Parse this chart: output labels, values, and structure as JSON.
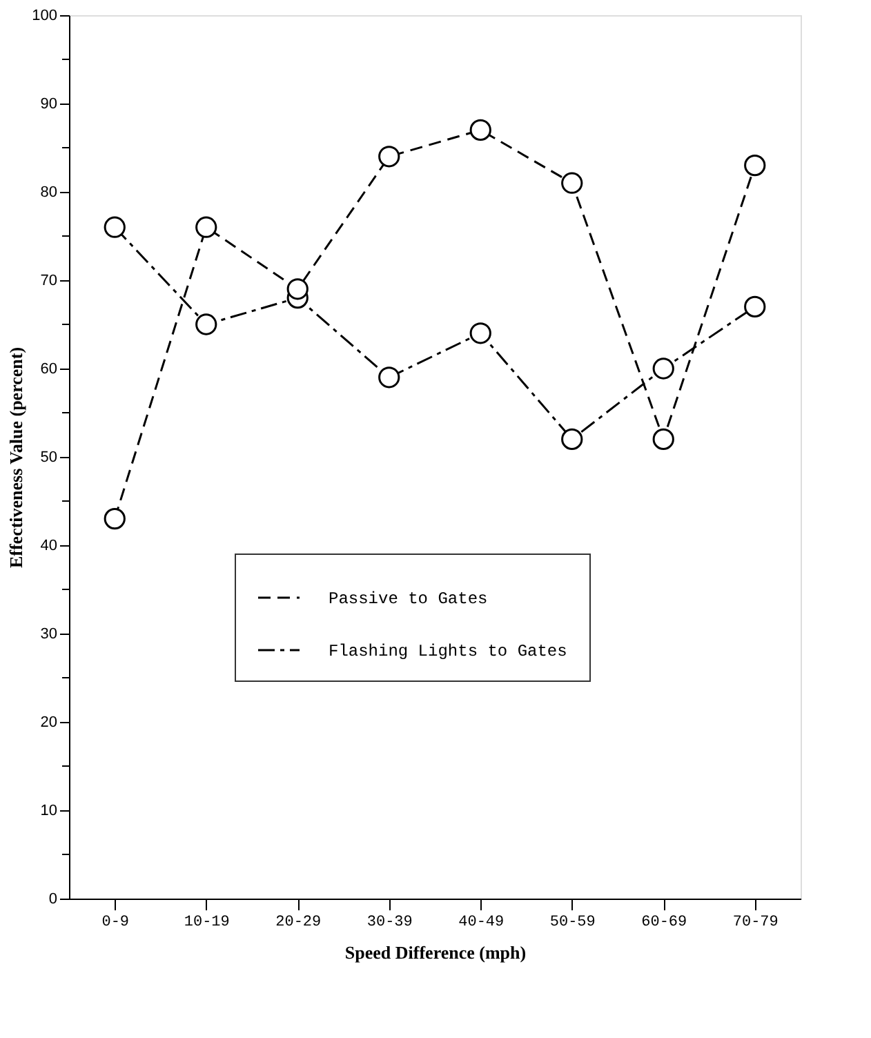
{
  "chart_data": {
    "type": "line",
    "xlabel": "Speed Difference (mph)",
    "ylabel": "Effectiveness Value (percent)",
    "categories": [
      "0-9",
      "10-19",
      "20-29",
      "30-39",
      "40-49",
      "50-59",
      "60-69",
      "70-79"
    ],
    "series": [
      {
        "name": "Passive to Gates",
        "color": "#000000",
        "line_style": "dashed",
        "values": [
          43,
          76,
          69,
          84,
          87,
          81,
          52,
          83
        ]
      },
      {
        "name": "Flashing Lights to Gates",
        "color": "#000000",
        "line_style": "dashdot",
        "values": [
          76,
          65,
          68,
          59,
          64,
          52,
          60,
          67
        ]
      }
    ],
    "ylim": [
      0,
      100
    ],
    "yticks": [
      0,
      {
        "value": 5,
        "label": null
      },
      10,
      {
        "value": 15,
        "label": null
      },
      20,
      {
        "value": 25,
        "label": null
      },
      30,
      {
        "value": 35,
        "label": null
      },
      40,
      {
        "value": 45,
        "label": null
      },
      50,
      {
        "value": 55,
        "label": null
      },
      60,
      {
        "value": 65,
        "label": null
      },
      70,
      {
        "value": 75,
        "label": null
      },
      80,
      {
        "value": 85,
        "label": null
      },
      90,
      {
        "value": 95,
        "label": null
      },
      100
    ],
    "marker": "circle",
    "grid": false,
    "legend": "center"
  }
}
